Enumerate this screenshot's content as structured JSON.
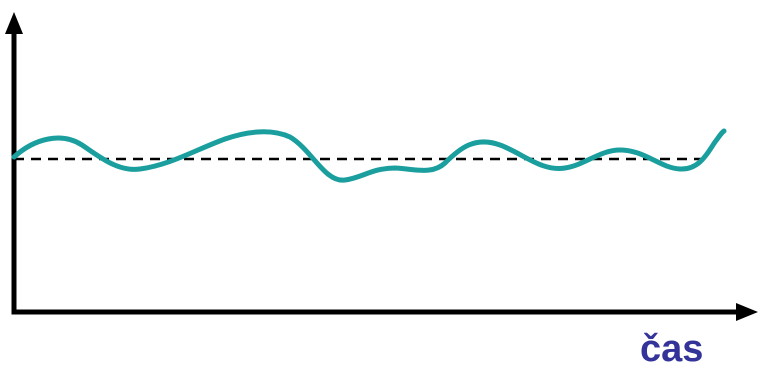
{
  "x_axis_label": "čas",
  "colors": {
    "axes": "#000000",
    "baseline": "#000000",
    "wave": "#1a9e9e",
    "label": "#333399"
  }
}
